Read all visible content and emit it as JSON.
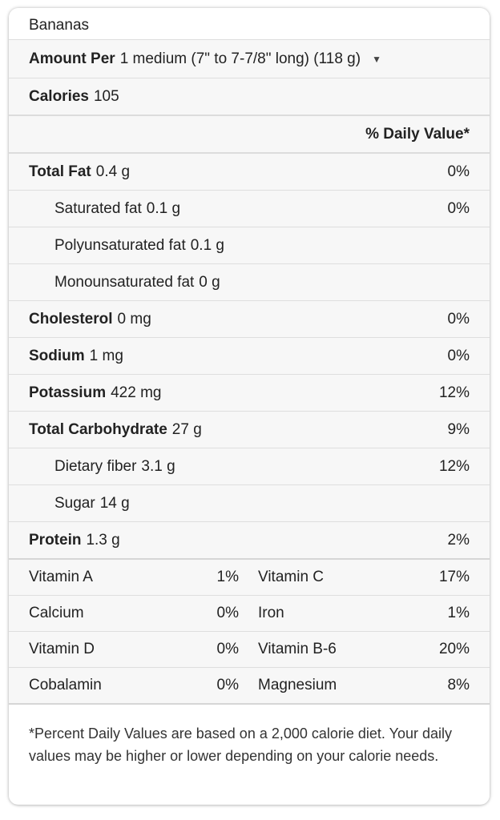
{
  "food": "Bananas",
  "serving": {
    "label": "Amount Per",
    "value": "1 medium (7\" to 7-7/8\" long) (118 g)"
  },
  "calories": {
    "label": "Calories",
    "value": "105"
  },
  "daily_value_header": "% Daily Value*",
  "nutrients": [
    {
      "name": "Total Fat",
      "amount": "0.4 g",
      "dv": "0%"
    },
    {
      "name": "Saturated fat",
      "amount": "0.1 g",
      "dv": "0%"
    },
    {
      "name": "Polyunsaturated fat",
      "amount": "0.1 g",
      "dv": ""
    },
    {
      "name": "Monounsaturated fat",
      "amount": "0 g",
      "dv": ""
    },
    {
      "name": "Cholesterol",
      "amount": "0 mg",
      "dv": "0%"
    },
    {
      "name": "Sodium",
      "amount": "1 mg",
      "dv": "0%"
    },
    {
      "name": "Potassium",
      "amount": "422 mg",
      "dv": "12%"
    },
    {
      "name": "Total Carbohydrate",
      "amount": "27 g",
      "dv": "9%"
    },
    {
      "name": "Dietary fiber",
      "amount": "3.1 g",
      "dv": "12%"
    },
    {
      "name": "Sugar",
      "amount": "14 g",
      "dv": ""
    },
    {
      "name": "Protein",
      "amount": "1.3 g",
      "dv": "2%"
    }
  ],
  "vitamins": [
    {
      "left_name": "Vitamin A",
      "left_dv": "1%",
      "right_name": "Vitamin C",
      "right_dv": "17%"
    },
    {
      "left_name": "Calcium",
      "left_dv": "0%",
      "right_name": "Iron",
      "right_dv": "1%"
    },
    {
      "left_name": "Vitamin D",
      "left_dv": "0%",
      "right_name": "Vitamin B-6",
      "right_dv": "20%"
    },
    {
      "left_name": "Cobalamin",
      "left_dv": "0%",
      "right_name": "Magnesium",
      "right_dv": "8%"
    }
  ],
  "footnote": "*Percent Daily Values are based on a 2,000 calorie diet. Your daily values may be higher or lower depending on your calorie needs."
}
